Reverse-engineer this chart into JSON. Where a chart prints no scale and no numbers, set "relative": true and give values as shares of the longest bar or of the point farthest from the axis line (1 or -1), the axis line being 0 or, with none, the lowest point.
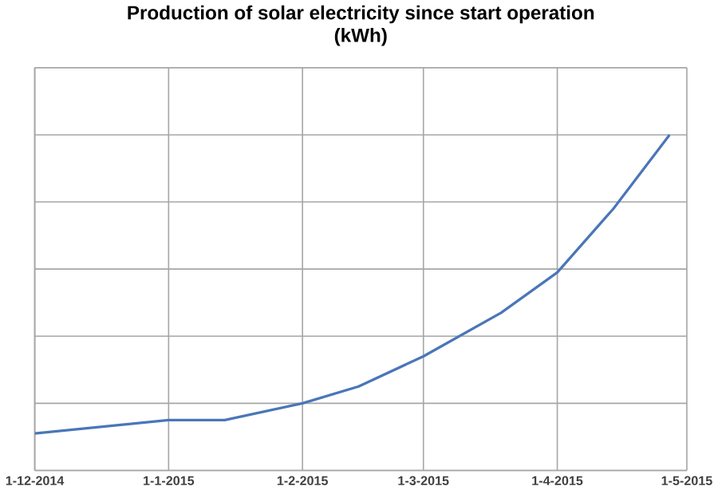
{
  "chart_data": {
    "type": "line",
    "title": "Production of solar electricity since start operation  (kWh)",
    "x": [
      "2014-12-01",
      "2015-01-01",
      "2015-01-14",
      "2015-02-01",
      "2015-02-14",
      "2015-03-01",
      "2015-03-19",
      "2015-04-01",
      "2015-04-14",
      "2015-04-27"
    ],
    "series": [
      {
        "color": "#4a76b8",
        "values": [
          0.11,
          0.15,
          0.15,
          0.2,
          0.25,
          0.34,
          0.47,
          0.59,
          0.78,
          1
        ]
      }
    ],
    "relative": true,
    "xlim": [
      "2014-12-01",
      "2015-05-01"
    ],
    "xticks": [
      {
        "value": "2014-12-01",
        "label": "1-12-2014"
      },
      {
        "value": "2015-01-01",
        "label": "1-1-2015"
      },
      {
        "value": "2015-02-01",
        "label": "1-2-2015"
      },
      {
        "value": "2015-03-01",
        "label": "1-3-2015"
      },
      {
        "value": "2015-04-01",
        "label": "1-4-2015"
      },
      {
        "value": "2015-05-01",
        "label": "1-5-2015"
      }
    ],
    "grid": true,
    "marker": "none",
    "line_style": "solid"
  }
}
